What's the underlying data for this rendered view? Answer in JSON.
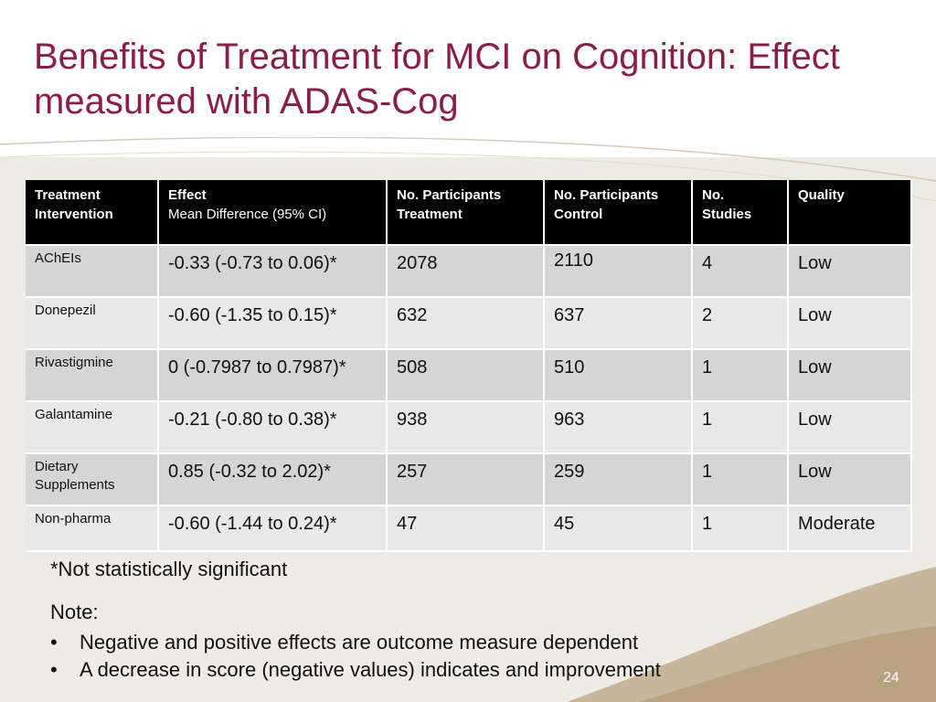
{
  "title": "Benefits of Treatment for MCI on Cognition: Effect measured with ADAS-Cog",
  "table": {
    "headers": [
      {
        "line1": "Treatment",
        "line2": "Intervention"
      },
      {
        "line1": "Effect",
        "line2": "Mean Difference (95% CI)"
      },
      {
        "line1": "No. Participants",
        "line2": "Treatment"
      },
      {
        "line1": "No. Participants",
        "line2": "Control"
      },
      {
        "line1": "No.",
        "line2": "Studies"
      },
      {
        "line1": "Quality",
        "line2": ""
      }
    ],
    "rows": [
      {
        "intervention": "AChEIs",
        "effect": "-0.33 (-0.73  to 0.06)*",
        "treatment": "2078",
        "control": "2110",
        "studies": "4",
        "quality": "Low"
      },
      {
        "intervention": "Donepezil",
        "effect": "-0.60 (-1.35 to 0.15)*",
        "treatment": "632",
        "control": "637",
        "studies": "2",
        "quality": "Low"
      },
      {
        "intervention": "Rivastigmine",
        "effect": "0  (-0.7987 to 0.7987)*",
        "treatment": "508",
        "control": "510",
        "studies": "1",
        "quality": "Low"
      },
      {
        "intervention": "Galantamine",
        "effect": "-0.21 (-0.80 to 0.38)*",
        "treatment": "938",
        "control": "963",
        "studies": "1",
        "quality": "Low"
      },
      {
        "intervention": "Dietary Supplements",
        "effect": "0.85 (-0.32 to 2.02)*",
        "treatment": "257",
        "control": "259",
        "studies": "1",
        "quality": "Low"
      },
      {
        "intervention": "Non-pharma",
        "effect": "-0.60 (-1.44 to 0.24)*",
        "treatment": "47",
        "control": "45",
        "studies": "1",
        "quality": "Moderate"
      }
    ]
  },
  "footnote": "*Not statistically significant",
  "note": {
    "heading": "Note:",
    "bullets": [
      "Negative and positive effects are outcome measure dependent",
      "A decrease in score (negative values) indicates and improvement"
    ]
  },
  "page_number": "24",
  "colors": {
    "title": "#8b1e48",
    "header_bg": "#000000",
    "row_dark": "#d5d5d5",
    "row_light": "#e8e8e8",
    "background": "#eeebe4",
    "swoosh": "#c9b8a0"
  }
}
